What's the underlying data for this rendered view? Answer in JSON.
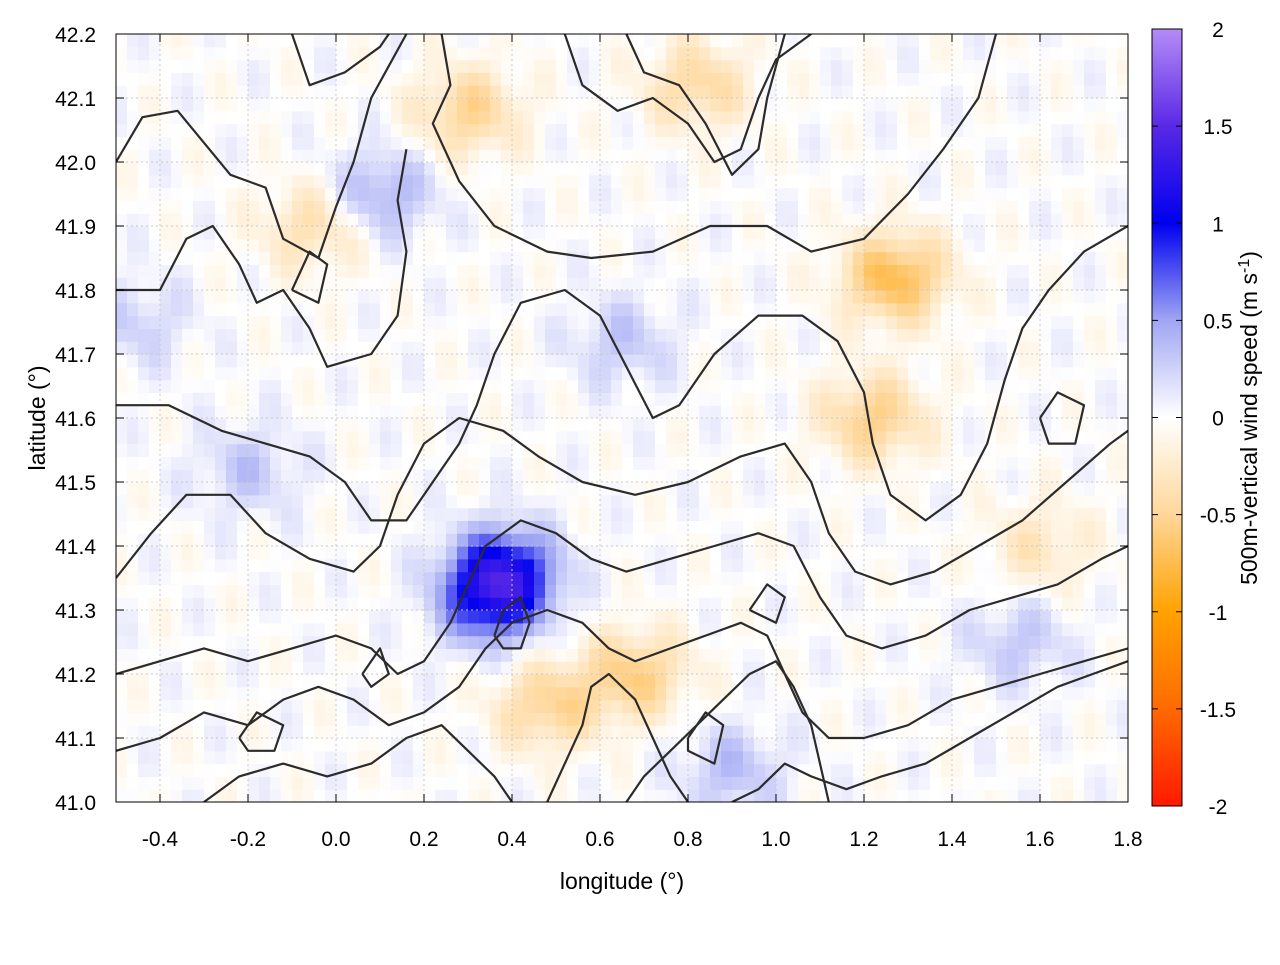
{
  "chart_data": {
    "type": "heatmap",
    "title": "",
    "xlabel": "longitude (°)",
    "ylabel": "latitude (°)",
    "xlim": [
      -0.5,
      1.8
    ],
    "ylim": [
      41.0,
      42.2
    ],
    "x_ticks": [
      -0.4,
      -0.2,
      0.0,
      0.2,
      0.4,
      0.6,
      0.8,
      1.0,
      1.2,
      1.4,
      1.6,
      1.8
    ],
    "x_tick_labels": [
      "-0.4",
      "-0.2",
      "0.0",
      "0.2",
      "0.4",
      "0.6",
      "0.8",
      "1.0",
      "1.2",
      "1.4",
      "1.6",
      "1.8"
    ],
    "y_ticks": [
      41.0,
      41.1,
      41.2,
      41.3,
      41.4,
      41.5,
      41.6,
      41.7,
      41.8,
      41.9,
      42.0,
      42.1,
      42.2
    ],
    "y_tick_labels": [
      "41.0",
      "41.1",
      "41.2",
      "41.3",
      "41.4",
      "41.5",
      "41.6",
      "41.7",
      "41.8",
      "41.9",
      "42.0",
      "42.1",
      "42.2"
    ],
    "grid": true,
    "colorbar": {
      "label_main": "500m-vertical wind speed (m s",
      "label_sup": "-1",
      "label_end": ")",
      "range": [
        -2,
        2
      ],
      "ticks": [
        2,
        1.5,
        1,
        0.5,
        0,
        -0.5,
        -1,
        -1.5,
        -2
      ],
      "tick_labels": [
        "2",
        "1.5",
        "1",
        "0.5",
        "0",
        "-0.5",
        "-1",
        "-1.5",
        "-2"
      ],
      "color_stops": [
        {
          "value": -2.0,
          "color": "#ff1a00"
        },
        {
          "value": -1.5,
          "color": "#ff6a00"
        },
        {
          "value": -1.0,
          "color": "#ffa200"
        },
        {
          "value": -0.5,
          "color": "#ffd79a"
        },
        {
          "value": 0.0,
          "color": "#ffffff"
        },
        {
          "value": 0.5,
          "color": "#9fa6f3"
        },
        {
          "value": 1.0,
          "color": "#0000ee"
        },
        {
          "value": 1.5,
          "color": "#5a28e6"
        },
        {
          "value": 2.0,
          "color": "#b48cf5"
        }
      ]
    },
    "field_features": [
      {
        "lon": 1.27,
        "lat": 41.82,
        "w": -0.75
      },
      {
        "lon": 1.22,
        "lat": 41.6,
        "w": -0.55
      },
      {
        "lon": 0.3,
        "lat": 42.08,
        "w": -0.5
      },
      {
        "lon": 0.82,
        "lat": 42.12,
        "w": -0.45
      },
      {
        "lon": 0.48,
        "lat": 41.15,
        "w": -0.5
      },
      {
        "lon": 0.68,
        "lat": 41.2,
        "w": -0.55
      },
      {
        "lon": -0.05,
        "lat": 41.9,
        "w": -0.4
      },
      {
        "lon": 0.38,
        "lat": 41.36,
        "w": 1.0
      },
      {
        "lon": 0.35,
        "lat": 41.31,
        "w": 0.7
      },
      {
        "lon": 0.1,
        "lat": 41.95,
        "w": 0.45
      },
      {
        "lon": 0.65,
        "lat": 41.72,
        "w": 0.3
      },
      {
        "lon": -0.2,
        "lat": 41.52,
        "w": 0.3
      },
      {
        "lon": -0.45,
        "lat": 41.75,
        "w": 0.25
      },
      {
        "lon": 1.6,
        "lat": 41.4,
        "w": -0.3
      },
      {
        "lon": 1.55,
        "lat": 41.25,
        "w": 0.3
      },
      {
        "lon": 0.9,
        "lat": 41.05,
        "w": 0.35
      }
    ],
    "contours": [
      [
        [
          -0.5,
          42.0
        ],
        [
          -0.44,
          42.07
        ],
        [
          -0.36,
          42.08
        ],
        [
          -0.3,
          42.03
        ],
        [
          -0.24,
          41.98
        ],
        [
          -0.16,
          41.96
        ],
        [
          -0.12,
          41.88
        ],
        [
          -0.04,
          41.85
        ],
        [
          0.0,
          41.93
        ],
        [
          0.04,
          42.0
        ],
        [
          0.08,
          42.1
        ],
        [
          0.16,
          42.2
        ]
      ],
      [
        [
          -0.1,
          42.2
        ],
        [
          -0.06,
          42.12
        ],
        [
          0.02,
          42.14
        ],
        [
          0.1,
          42.18
        ],
        [
          0.12,
          42.2
        ]
      ],
      [
        [
          0.24,
          42.2
        ],
        [
          0.26,
          42.12
        ],
        [
          0.22,
          42.06
        ],
        [
          0.28,
          41.97
        ],
        [
          0.36,
          41.9
        ],
        [
          0.48,
          41.86
        ],
        [
          0.58,
          41.85
        ],
        [
          0.72,
          41.86
        ],
        [
          0.85,
          41.9
        ],
        [
          0.98,
          41.9
        ],
        [
          1.08,
          41.86
        ],
        [
          1.2,
          41.88
        ],
        [
          1.3,
          41.95
        ],
        [
          1.38,
          42.02
        ],
        [
          1.46,
          42.1
        ],
        [
          1.5,
          42.2
        ]
      ],
      [
        [
          0.52,
          42.2
        ],
        [
          0.56,
          42.12
        ],
        [
          0.64,
          42.08
        ],
        [
          0.72,
          42.1
        ],
        [
          0.8,
          42.06
        ],
        [
          0.86,
          42.0
        ],
        [
          0.92,
          42.02
        ],
        [
          0.96,
          42.1
        ],
        [
          1.0,
          42.16
        ],
        [
          1.08,
          42.2
        ]
      ],
      [
        [
          0.66,
          42.2
        ],
        [
          0.7,
          42.14
        ],
        [
          0.78,
          42.12
        ],
        [
          0.84,
          42.06
        ],
        [
          0.9,
          41.98
        ],
        [
          0.96,
          42.02
        ],
        [
          0.98,
          42.1
        ],
        [
          1.02,
          42.2
        ]
      ],
      [
        [
          -0.5,
          41.8
        ],
        [
          -0.4,
          41.8
        ],
        [
          -0.34,
          41.88
        ],
        [
          -0.28,
          41.9
        ],
        [
          -0.22,
          41.84
        ],
        [
          -0.18,
          41.78
        ],
        [
          -0.12,
          41.8
        ],
        [
          -0.06,
          41.74
        ],
        [
          -0.02,
          41.68
        ],
        [
          0.08,
          41.7
        ],
        [
          0.14,
          41.76
        ],
        [
          0.16,
          41.86
        ],
        [
          0.14,
          41.94
        ],
        [
          0.16,
          42.02
        ]
      ],
      [
        [
          -0.5,
          41.62
        ],
        [
          -0.38,
          41.62
        ],
        [
          -0.26,
          41.58
        ],
        [
          -0.16,
          41.56
        ],
        [
          -0.06,
          41.54
        ],
        [
          0.02,
          41.5
        ],
        [
          0.08,
          41.44
        ],
        [
          0.16,
          41.44
        ],
        [
          0.22,
          41.5
        ],
        [
          0.28,
          41.56
        ],
        [
          0.32,
          41.62
        ],
        [
          0.36,
          41.7
        ],
        [
          0.42,
          41.78
        ],
        [
          0.52,
          41.8
        ],
        [
          0.6,
          41.76
        ],
        [
          0.66,
          41.68
        ],
        [
          0.72,
          41.6
        ],
        [
          0.78,
          41.62
        ],
        [
          0.86,
          41.7
        ],
        [
          0.96,
          41.76
        ],
        [
          1.06,
          41.76
        ],
        [
          1.14,
          41.72
        ],
        [
          1.2,
          41.64
        ],
        [
          1.22,
          41.56
        ],
        [
          1.26,
          41.48
        ],
        [
          1.34,
          41.44
        ],
        [
          1.42,
          41.48
        ],
        [
          1.48,
          41.56
        ],
        [
          1.52,
          41.66
        ],
        [
          1.56,
          41.74
        ],
        [
          1.62,
          41.8
        ],
        [
          1.7,
          41.86
        ],
        [
          1.8,
          41.9
        ]
      ],
      [
        [
          -0.5,
          41.35
        ],
        [
          -0.42,
          41.42
        ],
        [
          -0.34,
          41.48
        ],
        [
          -0.24,
          41.48
        ],
        [
          -0.16,
          41.42
        ],
        [
          -0.06,
          41.38
        ],
        [
          0.04,
          41.36
        ],
        [
          0.1,
          41.4
        ],
        [
          0.14,
          41.48
        ],
        [
          0.2,
          41.56
        ],
        [
          0.28,
          41.6
        ],
        [
          0.38,
          41.58
        ],
        [
          0.46,
          41.54
        ],
        [
          0.56,
          41.5
        ],
        [
          0.68,
          41.48
        ],
        [
          0.8,
          41.5
        ],
        [
          0.92,
          41.54
        ],
        [
          1.02,
          41.56
        ],
        [
          1.08,
          41.5
        ],
        [
          1.12,
          41.42
        ],
        [
          1.18,
          41.36
        ],
        [
          1.26,
          41.34
        ],
        [
          1.36,
          41.36
        ],
        [
          1.46,
          41.4
        ],
        [
          1.56,
          41.44
        ],
        [
          1.66,
          41.5
        ],
        [
          1.76,
          41.56
        ],
        [
          1.8,
          41.58
        ]
      ],
      [
        [
          -0.5,
          41.2
        ],
        [
          -0.4,
          41.22
        ],
        [
          -0.3,
          41.24
        ],
        [
          -0.2,
          41.22
        ],
        [
          -0.1,
          41.24
        ],
        [
          0.0,
          41.26
        ],
        [
          0.08,
          41.24
        ],
        [
          0.14,
          41.2
        ],
        [
          0.2,
          41.22
        ],
        [
          0.26,
          41.28
        ],
        [
          0.3,
          41.34
        ],
        [
          0.34,
          41.4
        ],
        [
          0.42,
          41.44
        ],
        [
          0.5,
          41.42
        ],
        [
          0.58,
          41.38
        ],
        [
          0.66,
          41.36
        ],
        [
          0.76,
          41.38
        ],
        [
          0.86,
          41.4
        ],
        [
          0.96,
          41.42
        ],
        [
          1.04,
          41.4
        ],
        [
          1.1,
          41.32
        ],
        [
          1.16,
          41.26
        ],
        [
          1.24,
          41.24
        ],
        [
          1.34,
          41.26
        ],
        [
          1.44,
          41.3
        ],
        [
          1.54,
          41.32
        ],
        [
          1.64,
          41.34
        ],
        [
          1.74,
          41.38
        ],
        [
          1.8,
          41.4
        ]
      ],
      [
        [
          -0.5,
          41.08
        ],
        [
          -0.4,
          41.1
        ],
        [
          -0.3,
          41.14
        ],
        [
          -0.2,
          41.12
        ],
        [
          -0.12,
          41.16
        ],
        [
          -0.04,
          41.18
        ],
        [
          0.04,
          41.16
        ],
        [
          0.12,
          41.12
        ],
        [
          0.2,
          41.14
        ],
        [
          0.28,
          41.18
        ],
        [
          0.34,
          41.24
        ],
        [
          0.4,
          41.28
        ],
        [
          0.48,
          41.3
        ],
        [
          0.56,
          41.28
        ],
        [
          0.62,
          41.24
        ],
        [
          0.68,
          41.22
        ],
        [
          0.76,
          41.24
        ],
        [
          0.84,
          41.26
        ],
        [
          0.92,
          41.28
        ],
        [
          0.98,
          41.26
        ],
        [
          1.02,
          41.2
        ],
        [
          1.06,
          41.14
        ],
        [
          1.12,
          41.1
        ],
        [
          1.2,
          41.1
        ],
        [
          1.3,
          41.12
        ],
        [
          1.4,
          41.16
        ],
        [
          1.5,
          41.18
        ],
        [
          1.6,
          41.2
        ],
        [
          1.7,
          41.22
        ],
        [
          1.8,
          41.24
        ]
      ],
      [
        [
          -0.3,
          41.0
        ],
        [
          -0.22,
          41.04
        ],
        [
          -0.12,
          41.06
        ],
        [
          -0.02,
          41.04
        ],
        [
          0.08,
          41.06
        ],
        [
          0.16,
          41.1
        ],
        [
          0.24,
          41.12
        ],
        [
          0.3,
          41.08
        ],
        [
          0.36,
          41.04
        ],
        [
          0.4,
          41.0
        ]
      ],
      [
        [
          0.48,
          41.0
        ],
        [
          0.52,
          41.06
        ],
        [
          0.56,
          41.12
        ],
        [
          0.58,
          41.18
        ],
        [
          0.62,
          41.2
        ],
        [
          0.68,
          41.16
        ],
        [
          0.72,
          41.1
        ],
        [
          0.76,
          41.04
        ],
        [
          0.8,
          41.0
        ]
      ],
      [
        [
          0.66,
          41.0
        ],
        [
          0.7,
          41.04
        ],
        [
          0.76,
          41.08
        ],
        [
          0.82,
          41.12
        ],
        [
          0.88,
          41.16
        ],
        [
          0.94,
          41.2
        ],
        [
          1.0,
          41.22
        ],
        [
          1.04,
          41.18
        ],
        [
          1.08,
          41.12
        ],
        [
          1.1,
          41.06
        ],
        [
          1.12,
          41.0
        ]
      ],
      [
        [
          0.9,
          41.0
        ],
        [
          0.96,
          41.02
        ],
        [
          1.02,
          41.06
        ],
        [
          1.08,
          41.04
        ],
        [
          1.16,
          41.02
        ],
        [
          1.24,
          41.04
        ],
        [
          1.34,
          41.06
        ],
        [
          1.44,
          41.1
        ],
        [
          1.54,
          41.14
        ],
        [
          1.64,
          41.18
        ],
        [
          1.72,
          41.2
        ],
        [
          1.8,
          41.22
        ]
      ],
      [
        [
          0.36,
          41.26
        ],
        [
          0.38,
          41.3
        ],
        [
          0.42,
          41.32
        ],
        [
          0.44,
          41.28
        ],
        [
          0.42,
          41.24
        ],
        [
          0.38,
          41.24
        ],
        [
          0.36,
          41.26
        ]
      ],
      [
        [
          -0.1,
          41.8
        ],
        [
          -0.06,
          41.86
        ],
        [
          -0.02,
          41.84
        ],
        [
          -0.04,
          41.78
        ],
        [
          -0.1,
          41.8
        ]
      ],
      [
        [
          0.94,
          41.3
        ],
        [
          0.98,
          41.34
        ],
        [
          1.02,
          41.32
        ],
        [
          1.0,
          41.28
        ],
        [
          0.94,
          41.3
        ]
      ],
      [
        [
          1.6,
          41.6
        ],
        [
          1.64,
          41.64
        ],
        [
          1.7,
          41.62
        ],
        [
          1.68,
          41.56
        ],
        [
          1.62,
          41.56
        ],
        [
          1.6,
          41.6
        ]
      ],
      [
        [
          -0.22,
          41.1
        ],
        [
          -0.18,
          41.14
        ],
        [
          -0.12,
          41.12
        ],
        [
          -0.14,
          41.08
        ],
        [
          -0.2,
          41.08
        ],
        [
          -0.22,
          41.1
        ]
      ],
      [
        [
          0.8,
          41.1
        ],
        [
          0.84,
          41.14
        ],
        [
          0.88,
          41.12
        ],
        [
          0.86,
          41.06
        ],
        [
          0.8,
          41.08
        ],
        [
          0.8,
          41.1
        ]
      ],
      [
        [
          0.06,
          41.2
        ],
        [
          0.1,
          41.24
        ],
        [
          0.12,
          41.2
        ],
        [
          0.08,
          41.18
        ],
        [
          0.06,
          41.2
        ]
      ]
    ]
  }
}
